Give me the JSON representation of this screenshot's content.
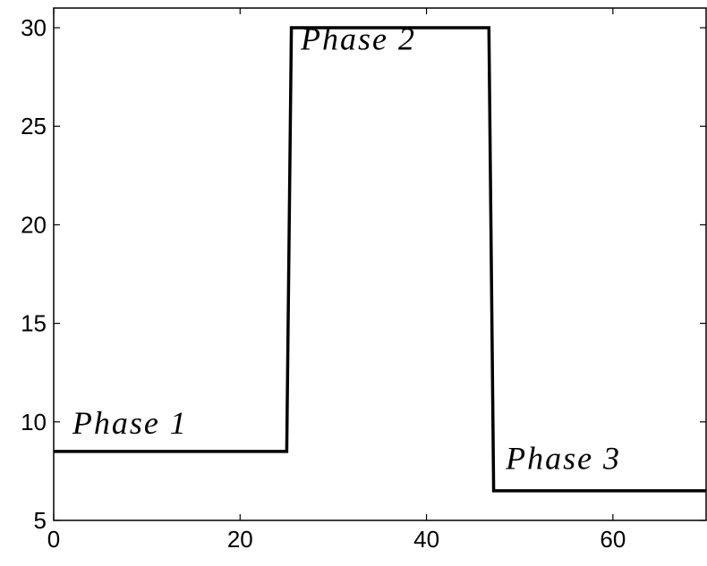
{
  "chart_data": {
    "type": "line",
    "title": "",
    "xlabel": "",
    "ylabel": "",
    "xlim": [
      0,
      70
    ],
    "ylim": [
      5,
      31
    ],
    "x_ticks": [
      "0",
      "20",
      "40",
      "60"
    ],
    "y_ticks": [
      "5",
      "10",
      "15",
      "20",
      "25",
      "30"
    ],
    "grid": false,
    "legend": "none",
    "line_color": "#000000",
    "series": [
      {
        "x": [
          0,
          25,
          25.5,
          46.7,
          47.2,
          70
        ],
        "y": [
          8.5,
          8.5,
          30,
          30,
          6.5,
          6.5
        ]
      }
    ],
    "annotations": [
      {
        "text": "Phase 1",
        "x": 2,
        "y": 9.4
      },
      {
        "text": "Phase 2",
        "x": 26.5,
        "y": 28.9
      },
      {
        "text": "Phase 3",
        "x": 48.5,
        "y": 7.6
      }
    ]
  }
}
